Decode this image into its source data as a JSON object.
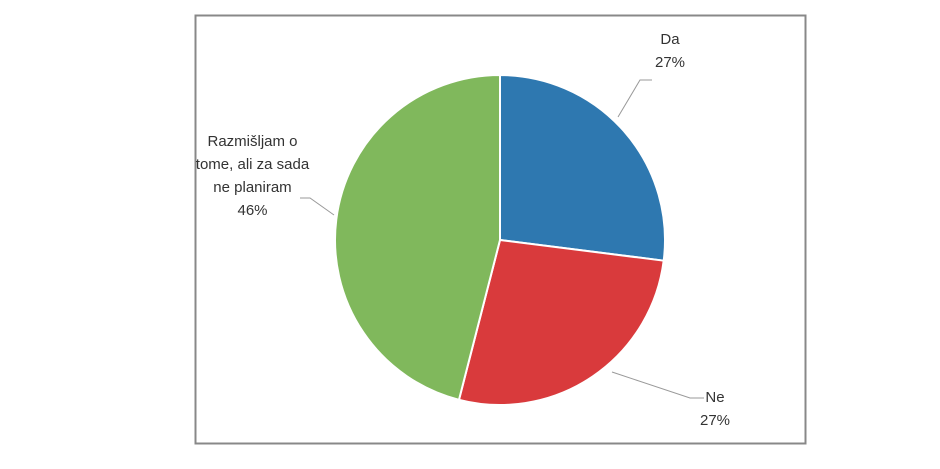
{
  "chart_data": {
    "type": "pie",
    "categories": [
      "Da",
      "Ne",
      "Razmišljam o tome, ali za sada ne planiram"
    ],
    "values": [
      27,
      27,
      46
    ],
    "value_labels": [
      "27%",
      "27%",
      "46%"
    ],
    "colors": [
      "#2e78b0",
      "#d93a3c",
      "#80b85c"
    ]
  }
}
